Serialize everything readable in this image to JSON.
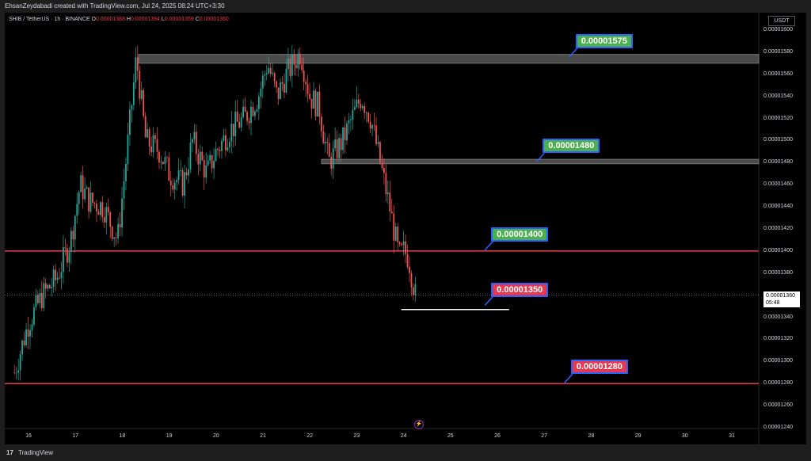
{
  "header": {
    "attribution": "EhsanZeydabadi created with TradingView.com, Jul 24, 2025 08:24 UTC+3:30"
  },
  "legend": {
    "symbol": "SHIB / TetherUS · 1h · BINANCE",
    "ohlc": [
      {
        "key": "O",
        "val": "0.00001388"
      },
      {
        "key": "H",
        "val": "0.00001394"
      },
      {
        "key": "L",
        "val": "0.00001359"
      },
      {
        "key": "C",
        "val": "0.00001360"
      }
    ]
  },
  "footer": {
    "logo": "17",
    "brand": "TradingView"
  },
  "chart_data": {
    "type": "candlestick",
    "unit": "USDT",
    "ylim": [
      1.24e-05,
      1.6e-05
    ],
    "y_ticks": [
      "0.00001600",
      "0.00001580",
      "0.00001560",
      "0.00001540",
      "0.00001520",
      "0.00001500",
      "0.00001480",
      "0.00001460",
      "0.00001440",
      "0.00001420",
      "0.00001400",
      "0.00001380",
      "0.00001360",
      "0.00001340",
      "0.00001320",
      "0.00001300",
      "0.00001280",
      "0.00001260",
      "0.00001240"
    ],
    "x_ticks": [
      "16",
      "17",
      "18",
      "19",
      "20",
      "21",
      "22",
      "23",
      "24",
      "25",
      "26",
      "27",
      "28",
      "29",
      "30",
      "31"
    ],
    "current_price": "0.00001360",
    "countdown": "05:48",
    "price_path": [
      [
        15.7,
        1.29e-05
      ],
      [
        16.0,
        1.335e-05
      ],
      [
        16.3,
        1.36e-05
      ],
      [
        16.6,
        1.375e-05
      ],
      [
        16.9,
        1.41e-05
      ],
      [
        17.1,
        1.46e-05
      ],
      [
        17.3,
        1.445e-05
      ],
      [
        17.6,
        1.44e-05
      ],
      [
        17.9,
        1.41e-05
      ],
      [
        18.1,
        1.49e-05
      ],
      [
        18.3,
        1.575e-05
      ],
      [
        18.5,
        1.5e-05
      ],
      [
        18.8,
        1.49e-05
      ],
      [
        19.0,
        1.47e-05
      ],
      [
        19.3,
        1.46e-05
      ],
      [
        19.5,
        1.5e-05
      ],
      [
        19.8,
        1.47e-05
      ],
      [
        20.0,
        1.49e-05
      ],
      [
        20.3,
        1.51e-05
      ],
      [
        20.6,
        1.52e-05
      ],
      [
        20.9,
        1.54e-05
      ],
      [
        21.1,
        1.57e-05
      ],
      [
        21.3,
        1.54e-05
      ],
      [
        21.5,
        1.56e-05
      ],
      [
        21.8,
        1.58e-05
      ],
      [
        22.0,
        1.54e-05
      ],
      [
        22.2,
        1.53e-05
      ],
      [
        22.4,
        1.48e-05
      ],
      [
        22.7,
        1.5e-05
      ],
      [
        22.9,
        1.52e-05
      ],
      [
        23.1,
        1.54e-05
      ],
      [
        23.3,
        1.52e-05
      ],
      [
        23.5,
        1.48e-05
      ],
      [
        23.7,
        1.44e-05
      ],
      [
        23.9,
        1.395e-05
      ],
      [
        24.0,
        1.4e-05
      ],
      [
        24.1,
        1.395e-05
      ],
      [
        24.25,
        1.36e-05
      ]
    ],
    "zones": [
      {
        "from_x": 18.35,
        "top": 1.578e-05,
        "bottom": 1.57e-05
      },
      {
        "from_x": 22.25,
        "top": 1.483e-05,
        "bottom": 1.479e-05
      }
    ],
    "horizontal_lines": [
      {
        "price": 1.4e-05,
        "color": "#e53950"
      },
      {
        "price": 1.28e-05,
        "color": "#e53950"
      }
    ],
    "support_segment": {
      "from_x": 23.95,
      "to_x": 26.25,
      "price": 1.347e-05
    },
    "annotations": [
      {
        "text": "0.00001575",
        "color": "green",
        "x": 27.6,
        "price": 1.575e-05
      },
      {
        "text": "0.00001480",
        "color": "green",
        "x": 26.9,
        "price": 1.48e-05
      },
      {
        "text": "0.00001400",
        "color": "green",
        "x": 25.8,
        "price": 1.4e-05
      },
      {
        "text": "0.00001350",
        "color": "red",
        "x": 25.8,
        "price": 1.35e-05
      },
      {
        "text": "0.00001280",
        "color": "red",
        "x": 27.5,
        "price": 1.28e-05
      }
    ]
  }
}
